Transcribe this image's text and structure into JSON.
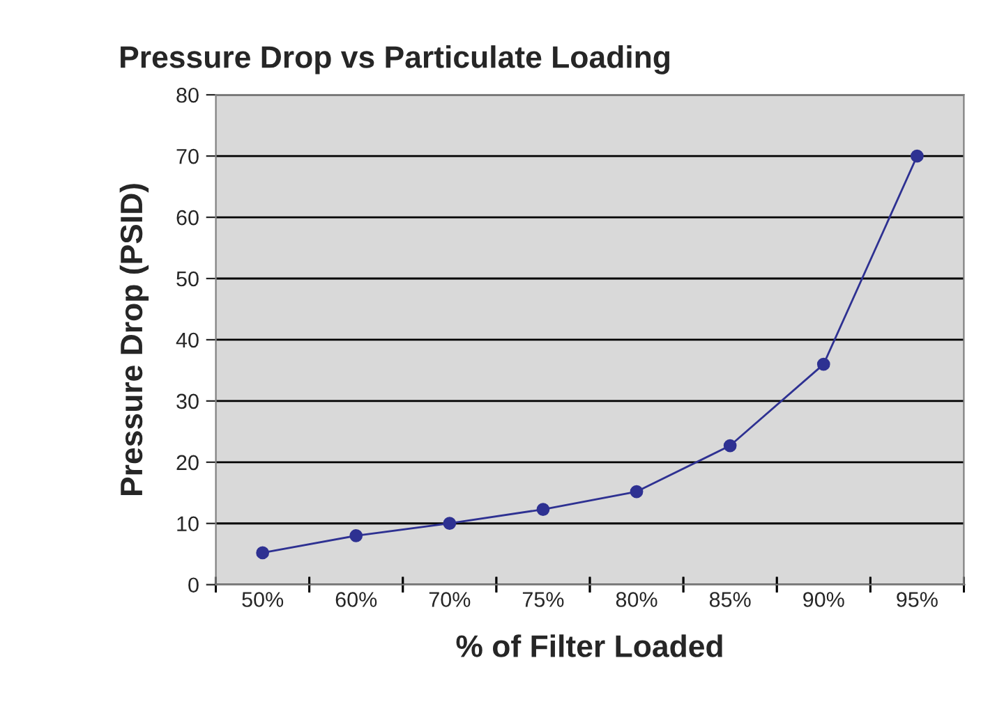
{
  "chart_data": {
    "type": "line",
    "title": "Pressure Drop vs Particulate Loading",
    "xlabel": "% of Filter Loaded",
    "ylabel": "Pressure Drop (PSID)",
    "categories": [
      "50%",
      "60%",
      "70%",
      "75%",
      "80%",
      "85%",
      "90%",
      "95%"
    ],
    "series": [
      {
        "color": "#2e3192",
        "values": [
          5.2,
          8,
          10,
          12.3,
          15.2,
          22.7,
          36,
          70
        ]
      }
    ],
    "ylim": [
      0,
      80
    ],
    "yticks": [
      0,
      10,
      20,
      30,
      40,
      50,
      60,
      70,
      80
    ],
    "grid": "y",
    "marker": "circle",
    "line_style": "solid"
  }
}
